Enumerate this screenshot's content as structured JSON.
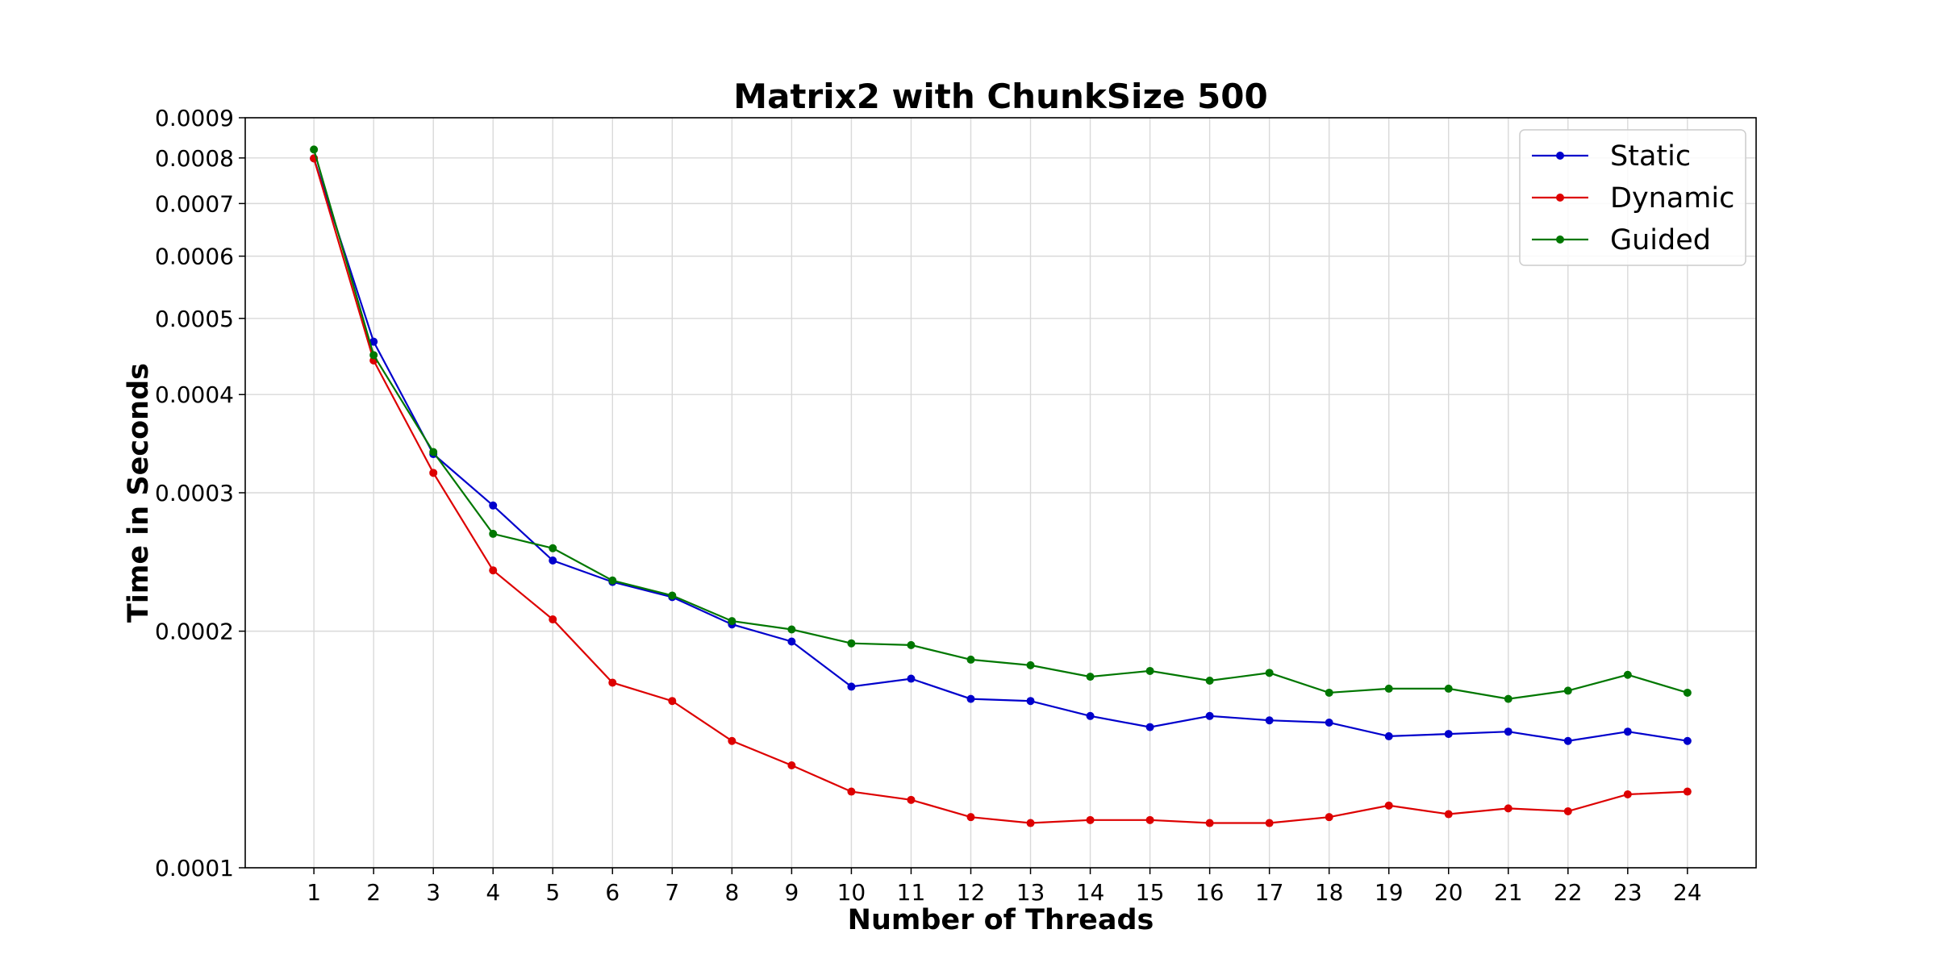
{
  "chart_data": {
    "type": "line",
    "title": "Matrix2 with ChunkSize 500",
    "xlabel": "Number of Threads",
    "ylabel": "Time in Seconds",
    "y_scale": "log",
    "ylim": [
      0.0001,
      0.0009
    ],
    "xlim": [
      -0.15,
      25.15
    ],
    "grid": true,
    "legend_position": "top-right",
    "x": [
      1,
      2,
      3,
      4,
      5,
      6,
      7,
      8,
      9,
      10,
      11,
      12,
      13,
      14,
      15,
      16,
      17,
      18,
      19,
      20,
      21,
      22,
      23,
      24
    ],
    "x_ticks": [
      "1",
      "2",
      "3",
      "4",
      "5",
      "6",
      "7",
      "8",
      "9",
      "10",
      "11",
      "12",
      "13",
      "14",
      "15",
      "16",
      "17",
      "18",
      "19",
      "20",
      "21",
      "22",
      "23",
      "24"
    ],
    "y_ticks": [
      {
        "value": 0.0001,
        "label": "0.0001"
      },
      {
        "value": 0.0002,
        "label": "0.0002"
      },
      {
        "value": 0.0003,
        "label": "0.0003"
      },
      {
        "value": 0.0004,
        "label": "0.0004"
      },
      {
        "value": 0.0005,
        "label": "0.0005"
      },
      {
        "value": 0.0006,
        "label": "0.0006"
      },
      {
        "value": 0.0007,
        "label": "0.0007"
      },
      {
        "value": 0.0008,
        "label": "0.0008"
      },
      {
        "value": 0.0009,
        "label": "0.0009"
      }
    ],
    "series": [
      {
        "name": "Static",
        "color": "#0000cc",
        "values": [
          0.000799,
          0.000467,
          0.000336,
          0.000289,
          0.000246,
          0.000231,
          0.000221,
          0.000204,
          0.000194,
          0.00017,
          0.000174,
          0.000164,
          0.000163,
          0.000156,
          0.000151,
          0.000156,
          0.000154,
          0.000153,
          0.000147,
          0.000148,
          0.000149,
          0.000145,
          0.000149,
          0.000145
        ]
      },
      {
        "name": "Dynamic",
        "color": "#dd0000",
        "values": [
          0.000799,
          0.000442,
          0.000318,
          0.000239,
          0.000207,
          0.000172,
          0.000163,
          0.000145,
          0.000135,
          0.000125,
          0.000122,
          0.000116,
          0.000114,
          0.000115,
          0.000115,
          0.000114,
          0.000114,
          0.000116,
          0.00012,
          0.000117,
          0.000119,
          0.000118,
          0.000124,
          0.000125
        ]
      },
      {
        "name": "Guided",
        "color": "#007700",
        "values": [
          0.00082,
          0.000449,
          0.000338,
          0.000266,
          0.000255,
          0.000232,
          0.000222,
          0.000206,
          0.000201,
          0.000193,
          0.000192,
          0.000184,
          0.000181,
          0.000175,
          0.000178,
          0.000173,
          0.000177,
          0.000167,
          0.000169,
          0.000169,
          0.000164,
          0.000168,
          0.000176,
          0.000167
        ]
      }
    ]
  }
}
